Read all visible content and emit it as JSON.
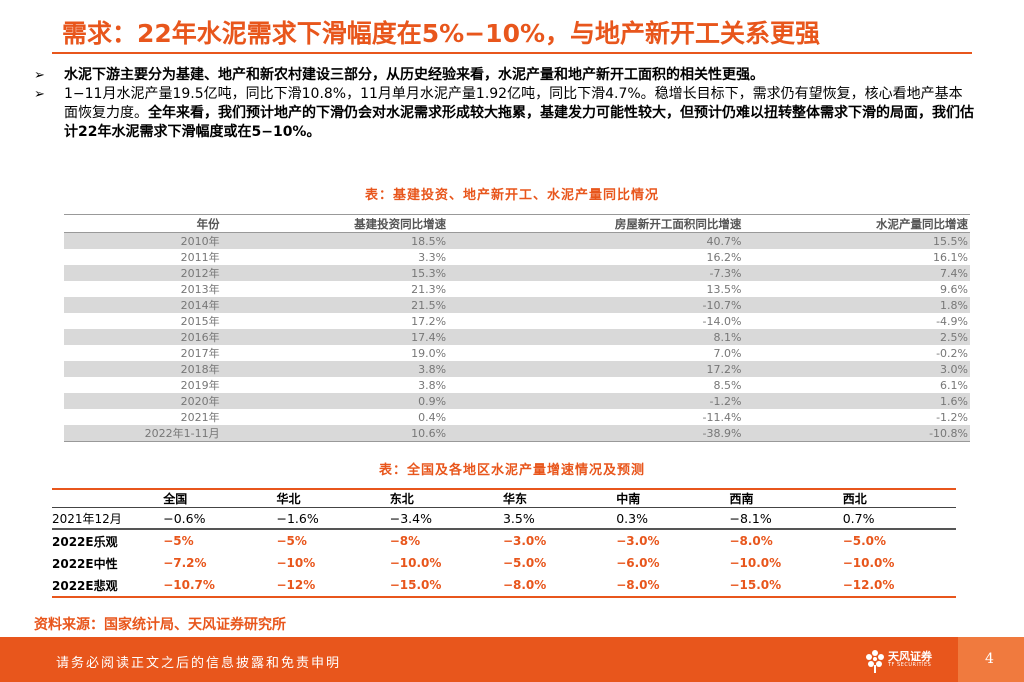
{
  "title": "需求：22年水泥需求下滑幅度在5%−10%，与地产新开工关系更强",
  "bullets": {
    "b1": "水泥下游主要分为基建、地产和新农村建设三部分，从历史经验来看，水泥产量和地产新开工面积的相关性更强。",
    "b2_normal": "1−11月水泥产量19.5亿吨，同比下滑10.8%，11月单月水泥产量1.92亿吨，同比下滑4.7%。稳增长目标下，需求仍有望恢复，核心看地产基本面恢复力度。",
    "b2_bold": "全年来看，我们预计地产的下滑仍会对水泥需求形成较大拖累，基建发力可能性较大，但预计仍难以扭转整体需求下滑的局面，我们估计22年水泥需求下滑幅度或在5−10%。",
    "mark": "➢"
  },
  "table1": {
    "caption": "表：基建投资、地产新开工、水泥产量同比情况",
    "headers": [
      "年份",
      "基建投资同比增速",
      "房屋新开工面积同比增速",
      "水泥产量同比增速"
    ],
    "rows": [
      [
        "2010年",
        "18.5%",
        "40.7%",
        "15.5%"
      ],
      [
        "2011年",
        "3.3%",
        "16.2%",
        "16.1%"
      ],
      [
        "2012年",
        "15.3%",
        "-7.3%",
        "7.4%"
      ],
      [
        "2013年",
        "21.3%",
        "13.5%",
        "9.6%"
      ],
      [
        "2014年",
        "21.5%",
        "-10.7%",
        "1.8%"
      ],
      [
        "2015年",
        "17.2%",
        "-14.0%",
        "-4.9%"
      ],
      [
        "2016年",
        "17.4%",
        "8.1%",
        "2.5%"
      ],
      [
        "2017年",
        "19.0%",
        "7.0%",
        "-0.2%"
      ],
      [
        "2018年",
        "3.8%",
        "17.2%",
        "3.0%"
      ],
      [
        "2019年",
        "3.8%",
        "8.5%",
        "6.1%"
      ],
      [
        "2020年",
        "0.9%",
        "-1.2%",
        "1.6%"
      ],
      [
        "2021年",
        "0.4%",
        "-11.4%",
        "-1.2%"
      ],
      [
        "2022年1-11月",
        "10.6%",
        "-38.9%",
        "-10.8%"
      ]
    ]
  },
  "table2": {
    "caption": "表：全国及各地区水泥产量增速情况及预测",
    "headers": [
      "",
      "全国",
      "华北",
      "东北",
      "华东",
      "中南",
      "西南",
      "西北"
    ],
    "rows": [
      [
        "2021年12月",
        "−0.6%",
        "−1.6%",
        "−3.4%",
        "3.5%",
        "0.3%",
        "−8.1%",
        "0.7%"
      ],
      [
        "2022E乐观",
        "−5%",
        "−5%",
        "−8%",
        "−3.0%",
        "−3.0%",
        "−8.0%",
        "−5.0%"
      ],
      [
        "2022E中性",
        "−7.2%",
        "−10%",
        "−10.0%",
        "−5.0%",
        "−6.0%",
        "−10.0%",
        "−10.0%"
      ],
      [
        "2022E悲观",
        "−10.7%",
        "−12%",
        "−15.0%",
        "−8.0%",
        "−8.0%",
        "−15.0%",
        "−12.0%"
      ]
    ]
  },
  "source": "资料来源：国家统计局、天风证券研究所",
  "footer": {
    "disclaimer": "请务必阅读正文之后的信息披露和免责申明",
    "logo_name": "天风证券",
    "logo_sub": "TF SECURITIES",
    "page": "4"
  },
  "colors": {
    "accent": "#e8561c",
    "row_shade": "#d9d9d9"
  }
}
